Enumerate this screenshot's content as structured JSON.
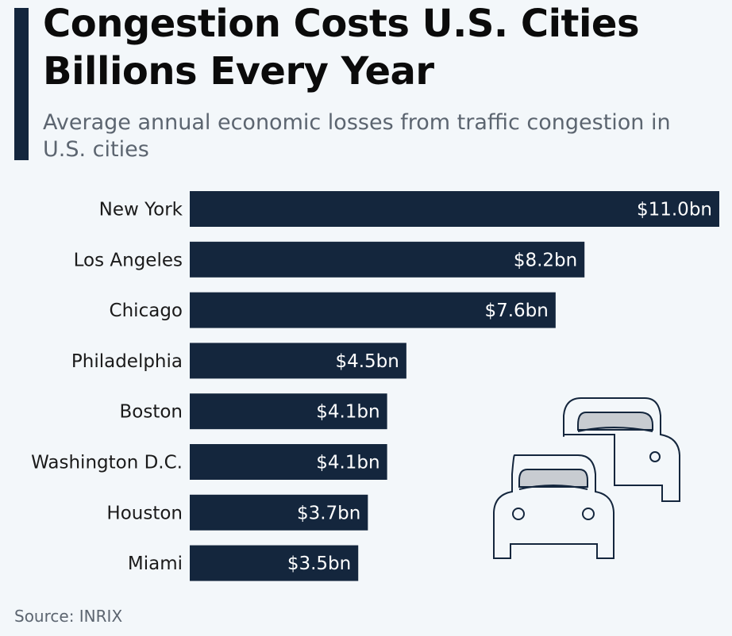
{
  "header": {
    "title_line1": "Congestion Costs U.S. Cities",
    "title_line2": "Billions Every Year",
    "subtitle": "Average annual economic losses from traffic congestion in U.S. cities"
  },
  "source": "Source: INRIX",
  "colors": {
    "bar": "#14263d",
    "accent": "#14263d",
    "value_label": "#ffffff",
    "category_label": "#1a1a1a"
  },
  "icons": [
    "car-icon"
  ],
  "chart_data": {
    "type": "bar",
    "orientation": "horizontal",
    "title": "Congestion Costs U.S. Cities Billions Every Year",
    "subtitle": "Average annual economic losses from traffic congestion in U.S. cities",
    "categories": [
      "New York",
      "Los Angeles",
      "Chicago",
      "Philadelphia",
      "Boston",
      "Washington D.C.",
      "Houston",
      "Miami"
    ],
    "values": [
      11.0,
      8.2,
      7.6,
      4.5,
      4.1,
      4.1,
      3.7,
      3.5
    ],
    "value_labels": [
      "$11.0bn",
      "$8.2bn",
      "$7.6bn",
      "$4.5bn",
      "$4.1bn",
      "$4.1bn",
      "$3.7bn",
      "$3.5bn"
    ],
    "unit": "bn USD",
    "xlim": [
      0,
      11.0
    ],
    "grid": false,
    "legend": "none"
  }
}
